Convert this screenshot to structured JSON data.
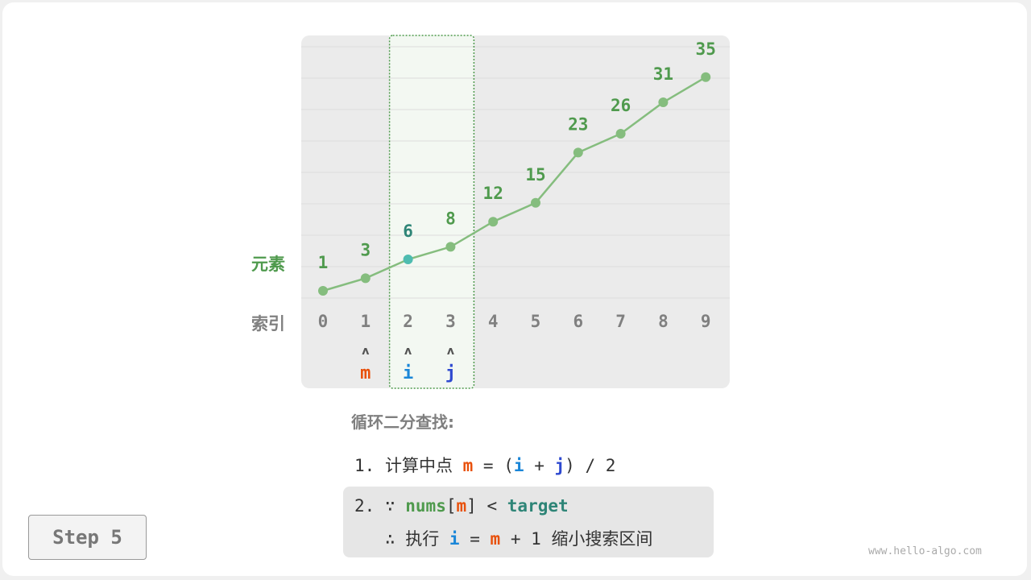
{
  "labels": {
    "elements": "元素",
    "indices": "索引"
  },
  "chart_data": {
    "type": "line",
    "indices": [
      0,
      1,
      2,
      3,
      4,
      5,
      6,
      7,
      8,
      9
    ],
    "values": [
      1,
      3,
      6,
      8,
      12,
      15,
      23,
      26,
      31,
      35
    ],
    "highlight_range": [
      2,
      3
    ],
    "highlight_point": 2,
    "pointers": [
      {
        "label": "m",
        "index": 1,
        "color": "#e8500b"
      },
      {
        "label": "i",
        "index": 2,
        "color": "#1a86d8"
      },
      {
        "label": "j",
        "index": 3,
        "color": "#2e49d0"
      }
    ]
  },
  "colors": {
    "line": "#85bd7e",
    "value": "#4f9a4d",
    "highlight_value": "#2e8577",
    "highlight_point": "#4ebcb0",
    "index": "#808080"
  },
  "algo": {
    "title": "循环二分查找:",
    "step1": {
      "num": "1.",
      "text": "计算中点",
      "m": "m",
      "eq": "=",
      "lp": "(",
      "i": "i",
      "plus": "+",
      "j": "j",
      "rest": ") / 2"
    },
    "step2": {
      "num": "2.",
      "because": "∵",
      "nums": "nums",
      "lb": "[",
      "m": "m",
      "rb": "]",
      "lt": "<",
      "target": "target"
    },
    "step3": {
      "therefore": "∴",
      "exec": "执行",
      "i": "i",
      "eq": "=",
      "m": "m",
      "plus1": "+ 1",
      "shrink": "缩小搜索区间"
    }
  },
  "step_button": "Step 5",
  "watermark": "www.hello-algo.com"
}
